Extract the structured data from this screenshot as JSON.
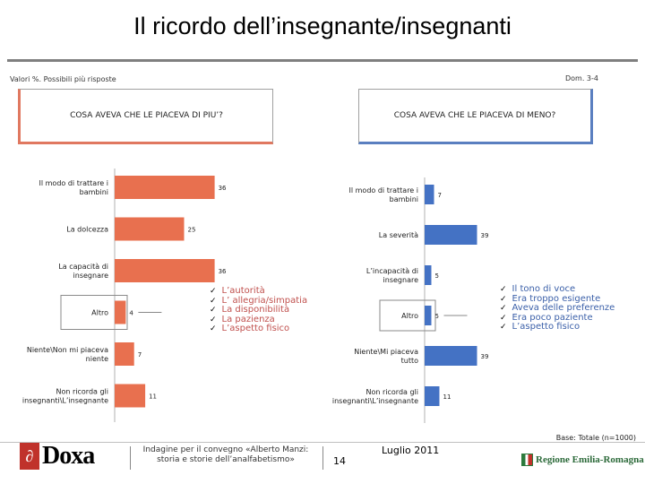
{
  "header": {
    "title": "Il ricordo dell’insegnante/insegnanti",
    "note": "Valori %. Possibili più risposte",
    "question_ref": "Dom. 3-4"
  },
  "chart_data": [
    {
      "type": "bar",
      "orientation": "horizontal",
      "title": "COSA AVEVA CHE LE PIACEVA DI PIU’?",
      "categories": [
        "Il modo di trattare i bambini",
        "La dolcezza",
        "La capacità di insegnare",
        "Altro",
        "Niente\\Non mi piaceva niente",
        "Non ricorda gli insegnanti\\L’insegnante"
      ],
      "values": [
        36,
        25,
        36,
        4,
        7,
        11
      ],
      "color": "#e8704f",
      "altro_details": [
        "L’autorità",
        "L’ allegria/simpatia",
        "La disponibilità",
        "La pazienza",
        "L’aspetto fisico"
      ]
    },
    {
      "type": "bar",
      "orientation": "horizontal",
      "title": "COSA AVEVA CHE LE PIACEVA DI MENO?",
      "categories": [
        "Il modo di trattare i bambini",
        "La severità",
        "L’incapacità di insegnare",
        "Altro",
        "Niente\\Mi piaceva tutto",
        "Non ricorda gli insegnanti\\L’insegnante"
      ],
      "values": [
        7,
        39,
        5,
        5,
        39,
        11
      ],
      "color": "#4472c4",
      "altro_details": [
        "Il tono di voce",
        "Era troppo esigente",
        "Aveva delle preferenze",
        "Era poco paziente",
        "L’aspetto fisico"
      ]
    }
  ],
  "footer": {
    "base": "Base: Totale (n=1000)",
    "logo_text": "Doxa",
    "event": "Indagine per il convegno «Alberto Manzi: storia e storie dell’analfabetismo»",
    "page": "14",
    "date": "Luglio 2011",
    "region_text": "Regione Emilia-Romagna"
  }
}
